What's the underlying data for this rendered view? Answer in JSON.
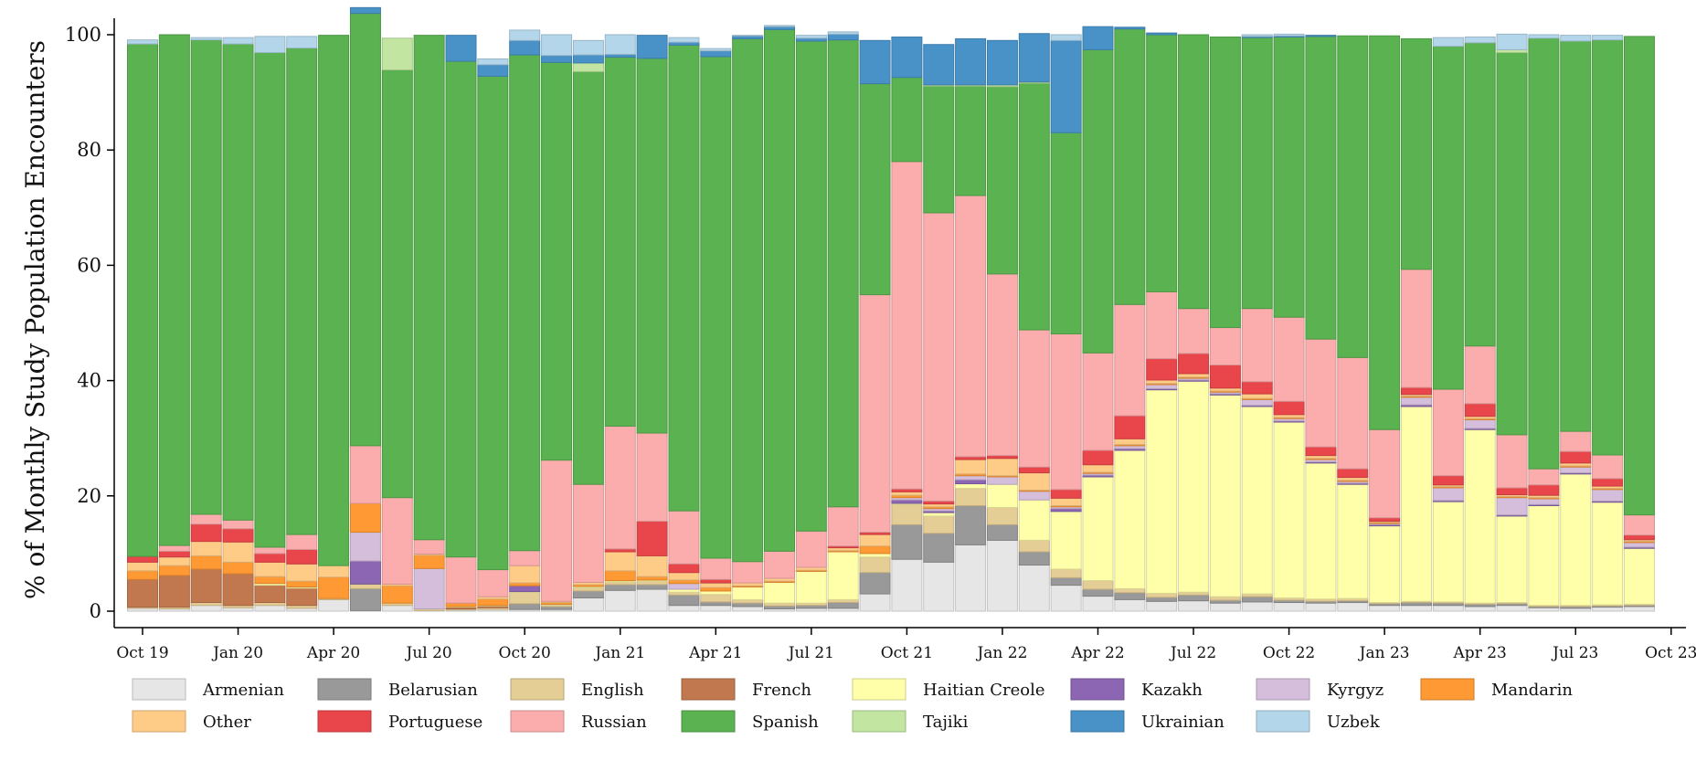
{
  "chart_data": {
    "type": "bar",
    "stacked": true,
    "title": "",
    "xlabel": "",
    "ylabel": "% of Monthly Study Population Encounters",
    "ylim": [
      0,
      100
    ],
    "yticks": [
      0,
      20,
      40,
      60,
      80,
      100
    ],
    "grid": false,
    "legend_position": "bottom",
    "months": [
      "2019-10",
      "2019-11",
      "2019-12",
      "2020-01",
      "2020-02",
      "2020-03",
      "2020-04",
      "2020-05",
      "2020-06",
      "2020-07",
      "2020-08",
      "2020-09",
      "2020-10",
      "2020-11",
      "2020-12",
      "2021-01",
      "2021-02",
      "2021-03",
      "2021-04",
      "2021-05",
      "2021-06",
      "2021-07",
      "2021-08",
      "2021-09",
      "2021-10",
      "2021-11",
      "2021-12",
      "2022-01",
      "2022-02",
      "2022-03",
      "2022-04",
      "2022-05",
      "2022-06",
      "2022-07",
      "2022-08",
      "2022-09",
      "2022-10",
      "2022-11",
      "2022-12",
      "2023-01",
      "2023-02",
      "2023-03",
      "2023-04",
      "2023-05",
      "2023-06",
      "2023-07",
      "2023-08",
      "2023-09"
    ],
    "xticks": [
      {
        "label": "Oct 19",
        "month": "2019-10"
      },
      {
        "label": "Jan 20",
        "month": "2020-01"
      },
      {
        "label": "Apr 20",
        "month": "2020-04"
      },
      {
        "label": "Jul 20",
        "month": "2020-07"
      },
      {
        "label": "Oct 20",
        "month": "2020-10"
      },
      {
        "label": "Jan 21",
        "month": "2021-01"
      },
      {
        "label": "Apr 21",
        "month": "2021-04"
      },
      {
        "label": "Jul 21",
        "month": "2021-07"
      },
      {
        "label": "Oct 21",
        "month": "2021-10"
      },
      {
        "label": "Jan 22",
        "month": "2022-01"
      },
      {
        "label": "Apr 22",
        "month": "2022-04"
      },
      {
        "label": "Jul 22",
        "month": "2022-07"
      },
      {
        "label": "Oct 22",
        "month": "2022-10"
      },
      {
        "label": "Jan 23",
        "month": "2023-01"
      },
      {
        "label": "Apr 23",
        "month": "2023-04"
      },
      {
        "label": "Jul 23",
        "month": "2023-07"
      },
      {
        "label": "Oct 23",
        "month": "2023-10"
      }
    ],
    "series": [
      {
        "name": "Armenian",
        "color": "#e6e6e6",
        "values": [
          0.5,
          0.4,
          1,
          0.6,
          1,
          0.5,
          2,
          0.1,
          1,
          0.1,
          0.2,
          0.3,
          0.3,
          0.3,
          2.3,
          3.6,
          3.8,
          1,
          1,
          0.8,
          0.4,
          0.5,
          0.5,
          3,
          9,
          8.5,
          11.5,
          12.3,
          8,
          4.5,
          2.6,
          2,
          1.7,
          1.8,
          1.4,
          1.6,
          1.5,
          1.4,
          1.5,
          1,
          1,
          1,
          0.8,
          1,
          0.6,
          0.5,
          0.7,
          0.8
        ]
      },
      {
        "name": "Belarusian",
        "color": "#999999",
        "values": [
          0,
          0,
          0,
          0,
          0,
          0,
          0,
          3.8,
          0,
          0,
          0,
          0,
          1,
          0.5,
          1.2,
          1,
          0.8,
          1.8,
          0.6,
          0.6,
          0.5,
          0.5,
          1,
          3.7,
          6,
          5,
          6.8,
          2.7,
          2.3,
          1.3,
          1.2,
          1.2,
          0.7,
          1,
          0.5,
          0.9,
          0.4,
          0.3,
          0.3,
          0.3,
          0.5,
          0.4,
          0.4,
          0.3,
          0.2,
          0.3,
          0.2,
          0.2
        ]
      },
      {
        "name": "English",
        "color": "#e5cd96",
        "values": [
          0.2,
          0.3,
          0.5,
          0.4,
          0.5,
          0.5,
          0.2,
          0.8,
          0.4,
          0.3,
          0.2,
          0.3,
          2,
          0.3,
          0.6,
          0.5,
          0.6,
          0.5,
          1.3,
          0.6,
          0.5,
          0.4,
          0.5,
          2.7,
          3.5,
          3,
          3,
          3,
          2,
          1.5,
          1.5,
          0.7,
          0.7,
          0.5,
          0.6,
          0.5,
          0.4,
          0.4,
          0.4,
          0.2,
          0.2,
          0.2,
          0.2,
          0.2,
          0.2,
          0.2,
          0.2,
          0.2
        ]
      },
      {
        "name": "French",
        "color": "#c1784f",
        "values": [
          4.8,
          5.5,
          5.8,
          5.5,
          3,
          3,
          0,
          0,
          0,
          0,
          0.3,
          0.3,
          0,
          0,
          0,
          0,
          0,
          0,
          0,
          0,
          0,
          0,
          0,
          0,
          0,
          0,
          0,
          0,
          0,
          0,
          0,
          0,
          0,
          0,
          0,
          0,
          0,
          0,
          0,
          0,
          0,
          0,
          0,
          0,
          0,
          0,
          0,
          0
        ]
      },
      {
        "name": "Haitian Creole",
        "color": "#ffffaa",
        "values": [
          0,
          0,
          0,
          0,
          0.3,
          0.2,
          0,
          0,
          0,
          0,
          0.1,
          0.1,
          0.1,
          0.1,
          0.2,
          0.2,
          0.2,
          0.5,
          0.6,
          2.2,
          3.6,
          5.5,
          8.3,
          0.6,
          0.2,
          0.6,
          0.8,
          4,
          7,
          10,
          18,
          24,
          35.3,
          36.6,
          35,
          32.5,
          30.5,
          23.6,
          19.8,
          13.3,
          33.8,
          17.4,
          30.1,
          15,
          17.3,
          22.8,
          17.8,
          9.7
        ]
      },
      {
        "name": "Kazakh",
        "color": "#8c66b3",
        "values": [
          0,
          0,
          0,
          0,
          0,
          0,
          0,
          4,
          0,
          0,
          0,
          0,
          1,
          0,
          0,
          0,
          0,
          0,
          0,
          0,
          0,
          0,
          0,
          0,
          0.6,
          0.3,
          0.7,
          0,
          0,
          0.5,
          0.3,
          0.3,
          0.2,
          0.2,
          0.2,
          0.2,
          0.2,
          0.2,
          0.2,
          0.2,
          0.3,
          0.2,
          0.2,
          0.2,
          0.2,
          0.2,
          0.2,
          0.2
        ]
      },
      {
        "name": "Kyrgyz",
        "color": "#d4bedc",
        "values": [
          0,
          0,
          0,
          0,
          0,
          0,
          0,
          5,
          0,
          7,
          0,
          0,
          0,
          0,
          0,
          0,
          0,
          1,
          0,
          0,
          0,
          0,
          0,
          0,
          0.4,
          0.4,
          0.7,
          1.3,
          1.5,
          0.3,
          0.3,
          0.5,
          0.7,
          0.3,
          0.3,
          1,
          0.4,
          0.4,
          0.3,
          0.2,
          1.3,
          2.2,
          1.5,
          3,
          1,
          1,
          2,
          0.8
        ]
      },
      {
        "name": "Mandarin",
        "color": "#ff9933",
        "values": [
          1.5,
          1.7,
          2.3,
          2,
          1.2,
          1,
          3.7,
          5,
          3,
          2.3,
          0.6,
          1.1,
          0.5,
          0.3,
          0.3,
          1.7,
          0.6,
          0.6,
          0.6,
          0.2,
          0.2,
          0.2,
          0.2,
          1.3,
          0.4,
          0.3,
          0.3,
          0.2,
          0.2,
          0.2,
          0.2,
          0.2,
          0.2,
          0.2,
          0.2,
          0.2,
          0.2,
          0.2,
          0.2,
          0.2,
          0.2,
          0.2,
          0.2,
          0.2,
          0.2,
          0.2,
          0.2,
          0.2
        ]
      },
      {
        "name": "Other",
        "color": "#ffcc88",
        "values": [
          1.5,
          1.5,
          2.5,
          3.5,
          2.5,
          3,
          2,
          0,
          0.3,
          0.2,
          0,
          0.4,
          3,
          0.2,
          0.4,
          3.3,
          3.6,
          1.3,
          0.8,
          0.5,
          0.5,
          0.5,
          0.5,
          2,
          0.6,
          0.5,
          2.5,
          3,
          3,
          1.3,
          1.3,
          1,
          0.6,
          0.6,
          0.5,
          0.8,
          0.5,
          0.5,
          0.5,
          0.2,
          0.3,
          0.3,
          0.4,
          0.3,
          0.4,
          0.5,
          0.4,
          0.3
        ]
      },
      {
        "name": "Portuguese",
        "color": "#e8464a",
        "values": [
          1,
          1,
          3,
          2.3,
          1.5,
          2.5,
          0,
          0,
          0,
          0,
          0,
          0,
          0,
          0,
          0,
          0.5,
          6,
          1.5,
          0.6,
          0,
          0,
          0,
          0.3,
          0.4,
          0.5,
          0.5,
          0.5,
          0.5,
          1,
          1.5,
          2.5,
          4,
          3.7,
          3.5,
          4,
          2.1,
          2.3,
          1.5,
          1.5,
          0.6,
          1.2,
          1.6,
          2.2,
          1.2,
          1.8,
          2,
          1.3,
          0.8
        ]
      },
      {
        "name": "Russian",
        "color": "#fbadad",
        "values": [
          0,
          1,
          1.7,
          1.5,
          1.1,
          2.6,
          0,
          10,
          15,
          2.5,
          8,
          4.7,
          2.6,
          24.5,
          17,
          21.3,
          15.3,
          9.2,
          3.7,
          3.7,
          4.7,
          6.3,
          6.8,
          41.2,
          56.8,
          50,
          45.3,
          31.5,
          23.8,
          27,
          16.9,
          19.3,
          11.6,
          7.8,
          6.5,
          12.7,
          14.6,
          18.7,
          19.3,
          15.3,
          20.5,
          15,
          10,
          9.2,
          2.8,
          3.5,
          4.1,
          3.5
        ]
      },
      {
        "name": "Spanish",
        "color": "#5ab250",
        "values": [
          88.9,
          88.6,
          82.3,
          82.6,
          85.8,
          84.4,
          92,
          75,
          74.2,
          87.5,
          86,
          85.6,
          86,
          69,
          71.6,
          64,
          65,
          80.8,
          87,
          90.7,
          90.5,
          85,
          81,
          36.6,
          14.6,
          22,
          19,
          32.5,
          42.8,
          34.9,
          52.6,
          47.8,
          44.6,
          47.5,
          50.4,
          47,
          48.6,
          52.5,
          55.8,
          68.3,
          40,
          59.5,
          52.6,
          66.3,
          74.7,
          67.7,
          72,
          83
        ]
      },
      {
        "name": "Tajiki",
        "color": "#c2e6a1",
        "values": [
          0,
          0,
          0,
          0,
          0,
          0,
          0,
          0,
          5.5,
          0,
          0,
          0,
          0,
          0,
          1.5,
          0,
          0,
          0,
          0,
          0,
          0,
          0,
          0,
          0,
          0,
          0.2,
          0.2,
          0.3,
          0.2,
          0,
          0,
          0,
          0,
          0,
          0,
          0,
          0,
          0,
          0,
          0,
          0,
          0,
          0,
          0.5,
          0,
          0,
          0,
          0
        ]
      },
      {
        "name": "Ukrainian",
        "color": "#4892c8",
        "values": [
          0,
          0,
          0,
          0,
          0,
          0,
          0,
          1,
          0,
          0,
          4.5,
          2,
          2.5,
          1.2,
          1.4,
          0.5,
          4,
          0.5,
          1,
          0.5,
          0.5,
          0.5,
          1,
          7.5,
          7,
          7,
          8,
          7.7,
          8.4,
          16,
          4,
          0.3,
          0.3,
          0,
          0,
          0.2,
          0.2,
          0.2,
          0,
          0,
          0,
          0,
          0,
          0,
          0,
          0,
          0,
          0
        ]
      },
      {
        "name": "Uzbek",
        "color": "#b4d6ea",
        "values": [
          0.7,
          0,
          0.4,
          1.1,
          2.8,
          2,
          0,
          0,
          0,
          0,
          0,
          1,
          1.8,
          3.6,
          2.5,
          3.4,
          0,
          0.8,
          0.4,
          0.1,
          0.2,
          0.5,
          0.4,
          0,
          0,
          0,
          0,
          0,
          0,
          1,
          0,
          0,
          0,
          0,
          0,
          0.3,
          0.3,
          0,
          0,
          0,
          0,
          1.5,
          1,
          2.7,
          0.6,
          1,
          0.8,
          0
        ]
      }
    ]
  }
}
